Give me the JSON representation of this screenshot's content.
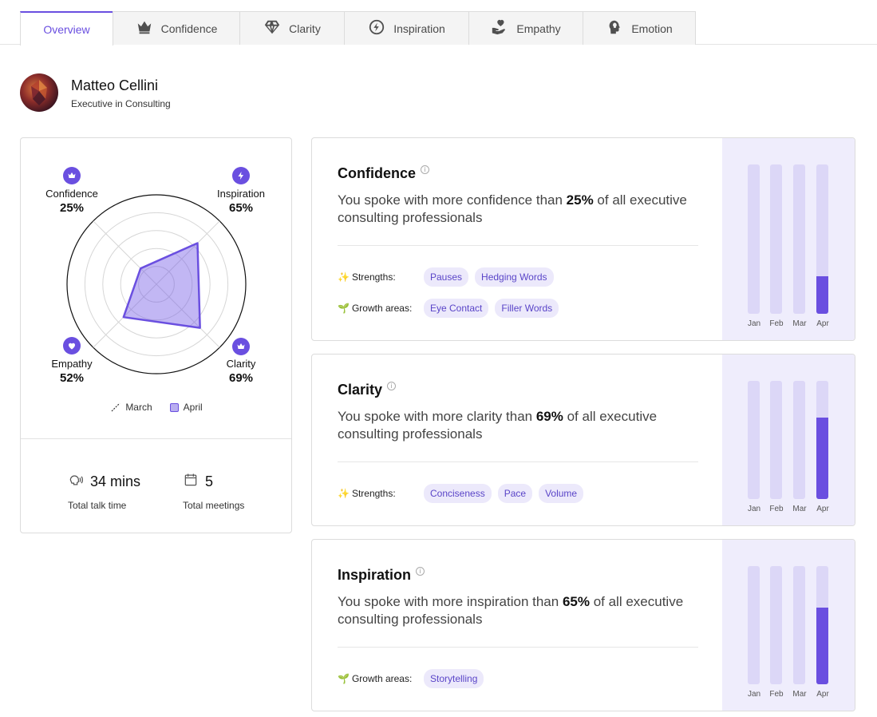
{
  "tabs": [
    {
      "label": "Overview",
      "icon": "none",
      "active": true
    },
    {
      "label": "Confidence",
      "icon": "crown-icon"
    },
    {
      "label": "Clarity",
      "icon": "diamond-icon"
    },
    {
      "label": "Inspiration",
      "icon": "bolt-icon"
    },
    {
      "label": "Empathy",
      "icon": "heart-hand-icon"
    },
    {
      "label": "Emotion",
      "icon": "head-lightbulb-icon"
    }
  ],
  "profile": {
    "name": "Matteo Cellini",
    "role": "Executive in Consulting"
  },
  "radar": {
    "axes": [
      {
        "name": "Confidence",
        "pct": "25%",
        "value": 25
      },
      {
        "name": "Inspiration",
        "pct": "65%",
        "value": 65
      },
      {
        "name": "Clarity",
        "pct": "69%",
        "value": 69
      },
      {
        "name": "Empathy",
        "pct": "52%",
        "value": 52
      }
    ],
    "legend": {
      "march": "March",
      "april": "April"
    },
    "accent": "#6a4fe0"
  },
  "stats": {
    "talk_time": {
      "value": "34 mins",
      "label": "Total talk time"
    },
    "meetings": {
      "value": "5",
      "label": "Total meetings"
    }
  },
  "cards": [
    {
      "title": "Confidence",
      "desc_pre": "You spoke with more confidence than ",
      "desc_pct": "25%",
      "desc_post": " of all executive consulting professionals",
      "strengths_label": "Strengths:",
      "strengths": [
        "Pauses",
        "Hedging Words"
      ],
      "growth_label": "Growth areas:",
      "growth": [
        "Eye Contact",
        "Filler Words"
      ],
      "months": [
        "Jan",
        "Feb",
        "Mar",
        "Apr"
      ],
      "bar_values": [
        0,
        0,
        0,
        25
      ]
    },
    {
      "title": "Clarity",
      "desc_pre": "You spoke with more clarity than ",
      "desc_pct": "69%",
      "desc_post": " of all executive consulting professionals",
      "strengths_label": "Strengths:",
      "strengths": [
        "Conciseness",
        "Pace",
        "Volume"
      ],
      "months": [
        "Jan",
        "Feb",
        "Mar",
        "Apr"
      ],
      "bar_values": [
        0,
        0,
        0,
        69
      ]
    },
    {
      "title": "Inspiration",
      "desc_pre": "You spoke with more inspiration than ",
      "desc_pct": "65%",
      "desc_post": " of all executive consulting professionals",
      "growth_label": "Growth areas:",
      "growth": [
        "Storytelling"
      ],
      "months": [
        "Jan",
        "Feb",
        "Mar",
        "Apr"
      ],
      "bar_values": [
        0,
        0,
        0,
        65
      ]
    }
  ]
}
